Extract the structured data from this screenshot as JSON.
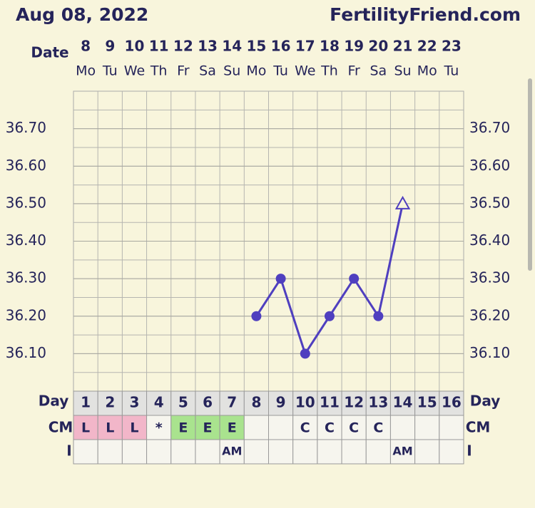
{
  "chart_data": {
    "type": "line",
    "title": "Aug 08, 2022",
    "site": "FertilityFriend.com",
    "date_label": "Date",
    "categories": [
      8,
      9,
      10,
      11,
      12,
      13,
      14,
      15,
      16,
      17,
      18,
      19,
      20,
      21,
      22,
      23
    ],
    "weekdays": [
      "Mo",
      "Tu",
      "We",
      "Th",
      "Fr",
      "Sa",
      "Su",
      "Mo",
      "Tu",
      "We",
      "Th",
      "Fr",
      "Sa",
      "Su",
      "Mo",
      "Tu"
    ],
    "values": [
      null,
      null,
      null,
      null,
      null,
      null,
      null,
      36.2,
      36.3,
      36.1,
      36.2,
      36.3,
      36.2,
      36.5,
      null,
      null
    ],
    "markers": [
      null,
      null,
      null,
      null,
      null,
      null,
      null,
      "circle",
      "circle",
      "circle",
      "circle",
      "circle",
      "circle",
      "triangle-open",
      null,
      null
    ],
    "color": "#4f3fbf",
    "ylim": [
      36.0,
      36.8
    ],
    "yticks": [
      {
        "value": 36.1,
        "label": "36.10"
      },
      {
        "value": 36.2,
        "label": "36.20"
      },
      {
        "value": 36.3,
        "label": "36.30"
      },
      {
        "value": 36.4,
        "label": "36.40"
      },
      {
        "value": 36.5,
        "label": "36.50"
      },
      {
        "value": 36.6,
        "label": "36.60"
      },
      {
        "value": 36.7,
        "label": "36.70"
      }
    ],
    "grid": true,
    "day_label": "Day",
    "days": [
      1,
      2,
      3,
      4,
      5,
      6,
      7,
      8,
      9,
      10,
      11,
      12,
      13,
      14,
      15,
      16
    ],
    "cm_label": "CM",
    "cm": [
      "L",
      "L",
      "L",
      "*",
      "E",
      "E",
      "E",
      null,
      null,
      "C",
      "C",
      "C",
      "C",
      null,
      null,
      null
    ],
    "i_label": "I",
    "intercourse": [
      null,
      null,
      null,
      null,
      null,
      null,
      "AM",
      null,
      null,
      null,
      null,
      null,
      null,
      "AM",
      null,
      null
    ]
  }
}
